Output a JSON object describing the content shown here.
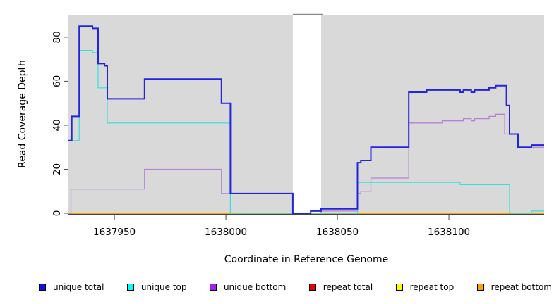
{
  "chart_data": {
    "type": "line",
    "subtype": "step-coverage-plot",
    "title": "",
    "xlabel": "Coordinate in Reference Genome",
    "ylabel": "Read Coverage Depth",
    "x_ticks": [
      1637950,
      1638000,
      1638050,
      1638100
    ],
    "x_tick_labels": [
      "1637950",
      "1638000",
      "1638050",
      "1638100"
    ],
    "y_ticks": [
      0,
      20,
      40,
      60,
      80
    ],
    "y_tick_labels": [
      "0",
      "20",
      "40",
      "60",
      "80"
    ],
    "x_domain": [
      1637929.4,
      1638142.7
    ],
    "ylim": [
      0,
      90.2
    ],
    "grid": false,
    "legend_position": "bottom",
    "background_color": "#ffffff",
    "region_fill_color": "#d9d9d9",
    "region_edge_color": "#c2c2c2",
    "gap_bridge_color": "#8a8a8a",
    "axis_color": "#444444",
    "background_regions": [
      {
        "name": "covered-region-left",
        "x0": 1637929.4,
        "x1": 1638030.0
      },
      {
        "name": "covered-region-right",
        "x0": 1638042.7,
        "x1": 1638142.7
      }
    ],
    "gap_bridge": {
      "x0": 1638030.0,
      "x1": 1638043.6
    },
    "series": [
      {
        "name": "repeat total",
        "color": "#e00000",
        "width": 1.2,
        "points": [
          [
            1637929.4,
            0
          ]
        ]
      },
      {
        "name": "repeat top",
        "color": "#ffff00",
        "width": 1.2,
        "points": [
          [
            1637929.4,
            0
          ]
        ]
      },
      {
        "name": "repeat bottom",
        "color": "#ffa000",
        "width": 2,
        "points": [
          [
            1637929.4,
            0
          ]
        ]
      },
      {
        "name": "unique bottom",
        "color": "#b980d8",
        "width": 1.3,
        "points": [
          [
            1637929.4,
            0
          ],
          [
            1637930.5,
            11
          ],
          [
            1637963.5,
            20
          ],
          [
            1637998,
            9
          ],
          [
            1638030,
            0
          ],
          [
            1638042.7,
            1
          ],
          [
            1638059,
            9
          ],
          [
            1638060.5,
            10
          ],
          [
            1638065,
            16
          ],
          [
            1638082,
            41
          ],
          [
            1638097,
            42
          ],
          [
            1638106.5,
            43
          ],
          [
            1638110,
            42
          ],
          [
            1638111.5,
            43
          ],
          [
            1638118,
            44
          ],
          [
            1638121,
            45
          ],
          [
            1638125,
            36
          ],
          [
            1638131,
            30
          ]
        ]
      },
      {
        "name": "unique top",
        "color": "#33e0e0",
        "width": 1.2,
        "points": [
          [
            1637929.4,
            33
          ],
          [
            1637934.2,
            74
          ],
          [
            1637940.2,
            73
          ],
          [
            1637942.7,
            57
          ],
          [
            1637946.8,
            41
          ],
          [
            1638002,
            0
          ],
          [
            1638059,
            14
          ],
          [
            1638105,
            13
          ],
          [
            1638127.2,
            0
          ],
          [
            1638137,
            1
          ]
        ]
      },
      {
        "name": "unique total",
        "color": "#2424dd",
        "width": 2,
        "points": [
          [
            1637929.4,
            33
          ],
          [
            1637930.9,
            44
          ],
          [
            1637934.2,
            85
          ],
          [
            1637940.2,
            84
          ],
          [
            1637942.7,
            68
          ],
          [
            1637945.6,
            67
          ],
          [
            1637946.8,
            52
          ],
          [
            1637963.5,
            61
          ],
          [
            1637998,
            50
          ],
          [
            1638002,
            9
          ],
          [
            1638030,
            0
          ],
          [
            1638038,
            1
          ],
          [
            1638042.7,
            2
          ],
          [
            1638059,
            23
          ],
          [
            1638060.5,
            24
          ],
          [
            1638065,
            30
          ],
          [
            1638082,
            55
          ],
          [
            1638090,
            56
          ],
          [
            1638105,
            55
          ],
          [
            1638106.5,
            56
          ],
          [
            1638110,
            55
          ],
          [
            1638111.5,
            56
          ],
          [
            1638118,
            57
          ],
          [
            1638121,
            58
          ],
          [
            1638125.8,
            49
          ],
          [
            1638127.2,
            36
          ],
          [
            1638131,
            30
          ],
          [
            1638137,
            31
          ]
        ]
      }
    ],
    "legend": [
      {
        "label": "unique total",
        "color": "#1010e0"
      },
      {
        "label": "unique top",
        "color": "#00ffff"
      },
      {
        "label": "unique bottom",
        "color": "#a020f0"
      },
      {
        "label": "repeat total",
        "color": "#e80000"
      },
      {
        "label": "repeat top",
        "color": "#ffff00"
      },
      {
        "label": "repeat bottom",
        "color": "#ffa200"
      }
    ]
  }
}
